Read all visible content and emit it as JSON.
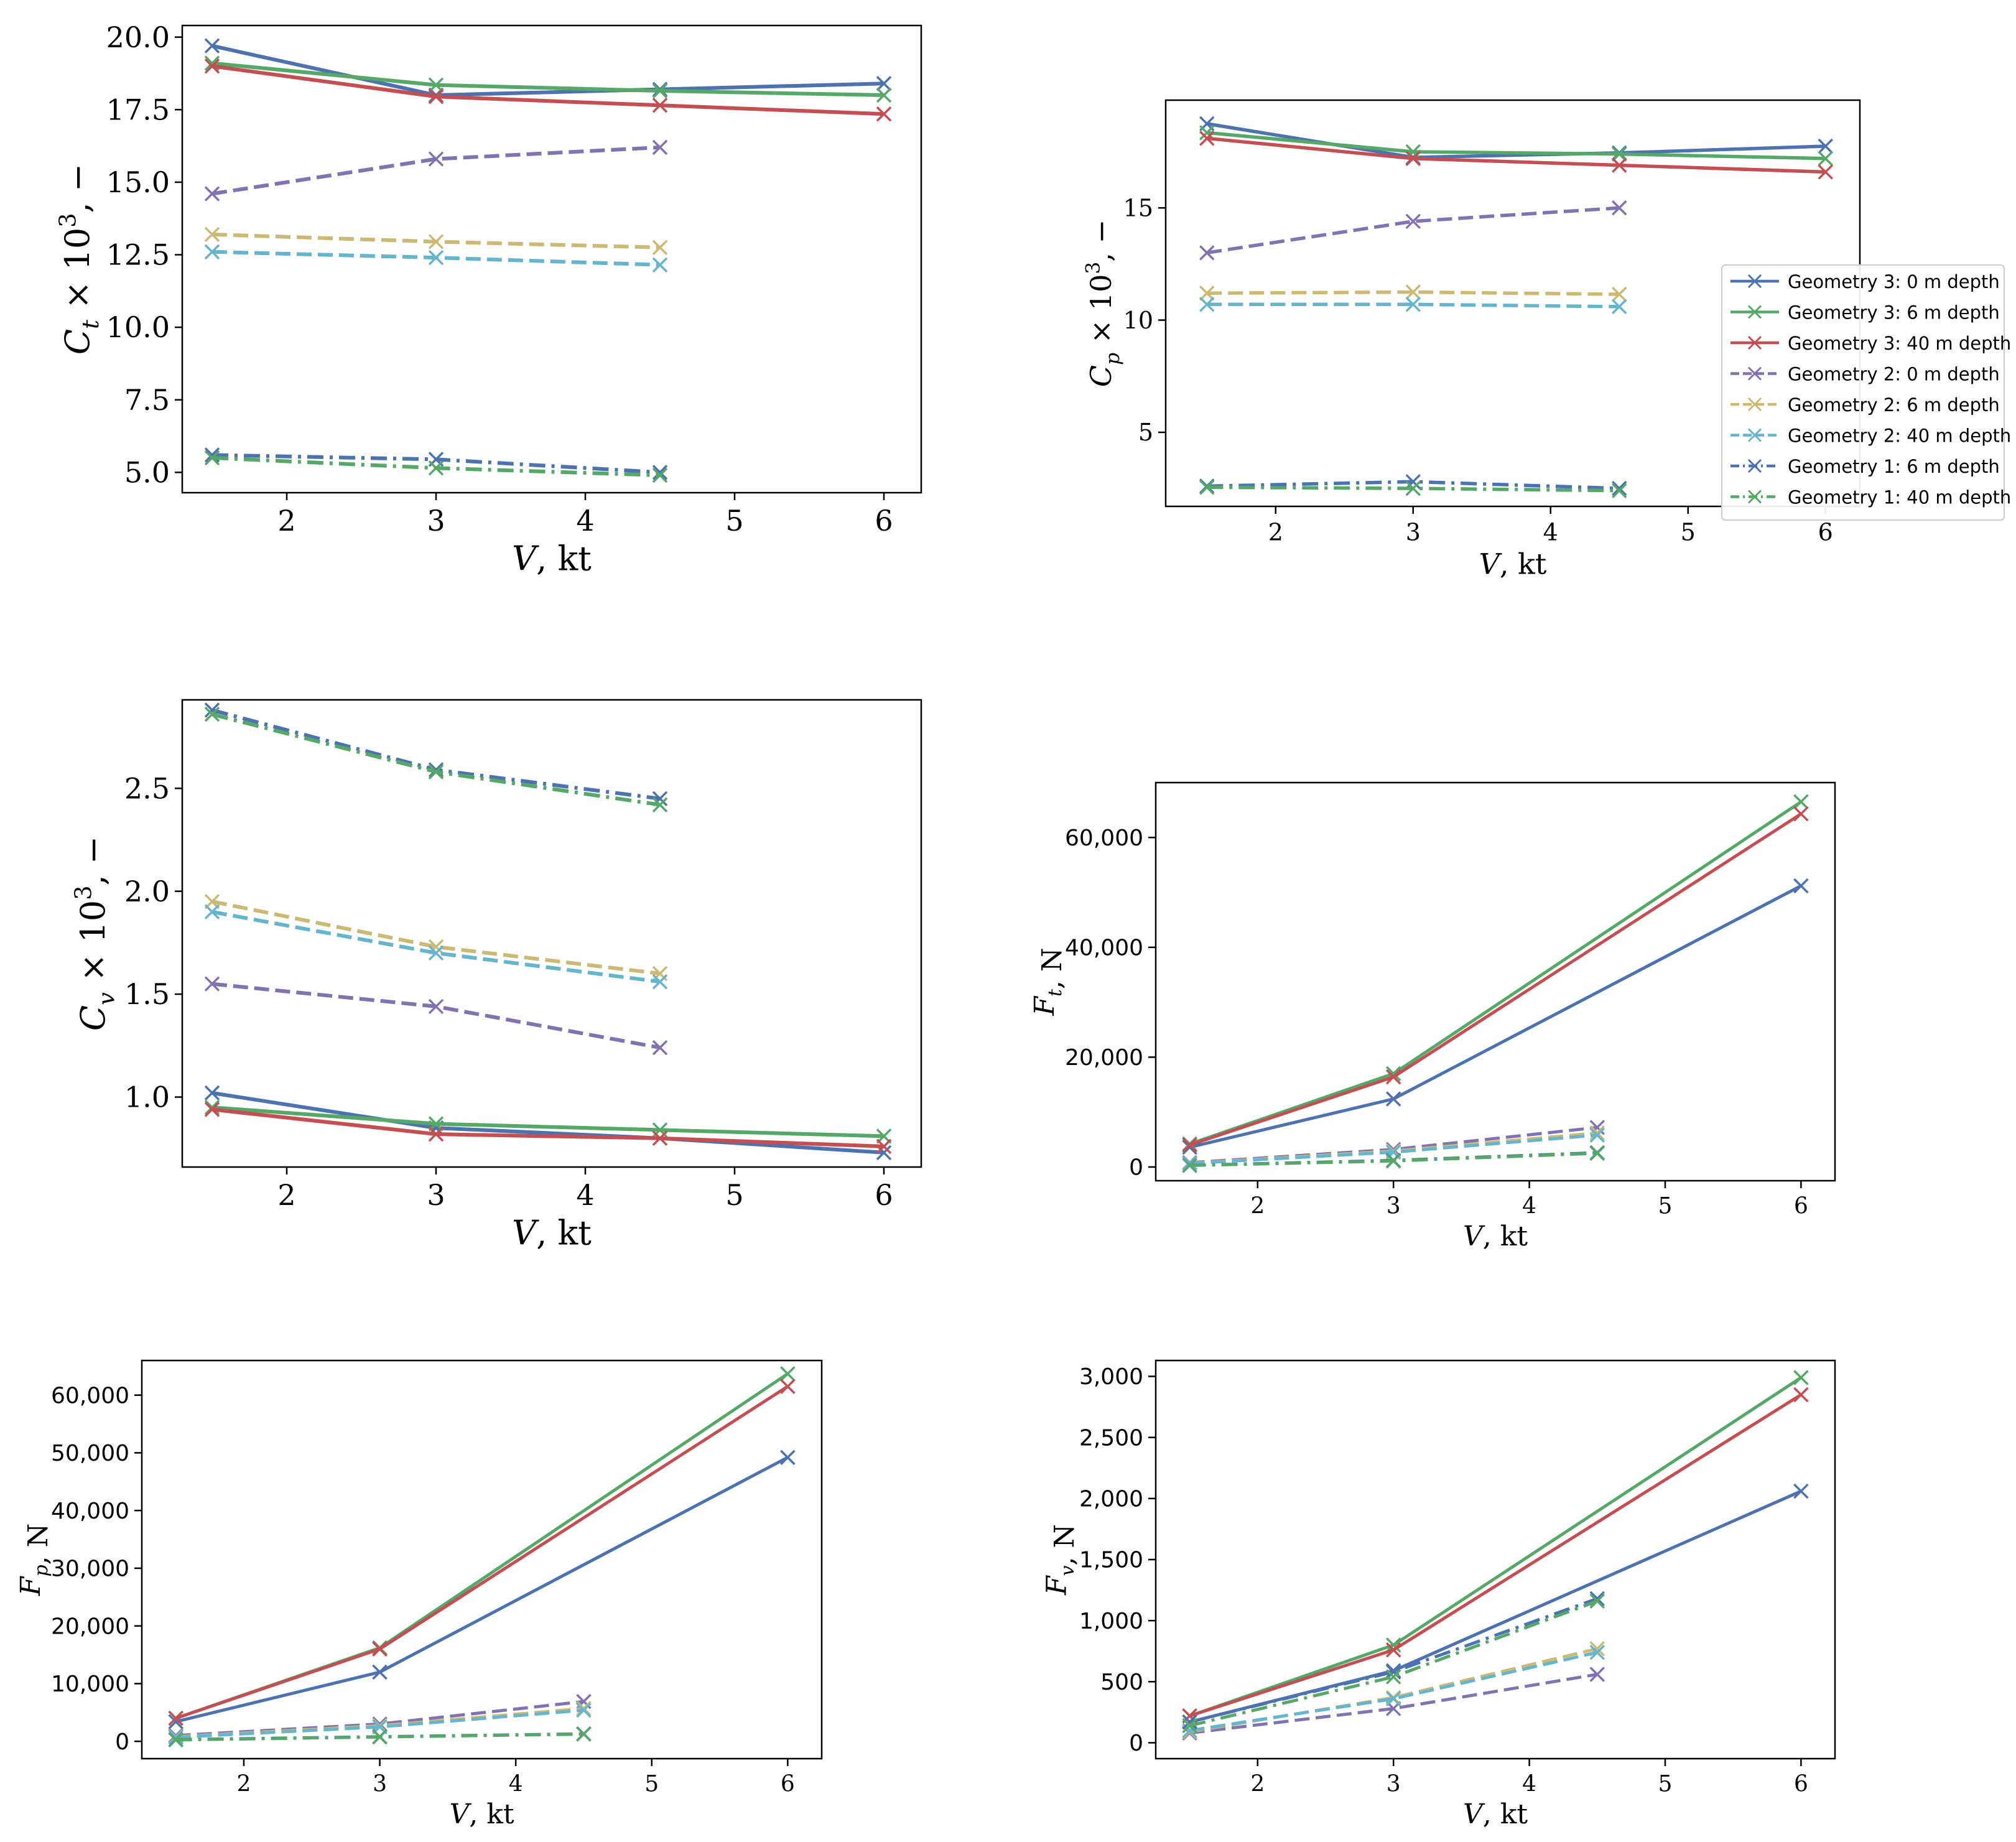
{
  "series_styles": [
    {
      "name": "Geometry 3: 0 m depth",
      "color": "#4c72b0",
      "dash": "solid"
    },
    {
      "name": "Geometry 3: 6 m depth",
      "color": "#55a868",
      "dash": "solid"
    },
    {
      "name": "Geometry 3: 40 m depth",
      "color": "#c44e52",
      "dash": "solid"
    },
    {
      "name": "Geometry 2: 0 m depth",
      "color": "#8172b2",
      "dash": "dashed"
    },
    {
      "name": "Geometry 2: 6 m depth",
      "color": "#ccb974",
      "dash": "dashed"
    },
    {
      "name": "Geometry 2: 40 m depth",
      "color": "#64b5cd",
      "dash": "dashed"
    },
    {
      "name": "Geometry 1: 6 m depth",
      "color": "#4c72b0",
      "dash": "dashdot"
    },
    {
      "name": "Geometry 1: 40 m depth",
      "color": "#55a868",
      "dash": "dashdot"
    }
  ],
  "chart_data": [
    {
      "id": "ct",
      "type": "line",
      "ylabel_html": "C<tspan font-style='italic' baseline-shift='sub' font-size='70%'>t</tspan>",
      "ylabel_tex": "C_t × 10^3, −",
      "ylabel": {
        "base": "C",
        "sub": "t",
        "suffix": " × 10",
        "sup": "3",
        "tail": ", −"
      },
      "xlabel": {
        "base": "V",
        "tail": ", kt"
      },
      "xlim": [
        1.3,
        6.25
      ],
      "ylim": [
        4.3,
        20.4
      ],
      "xticks": [
        2,
        3,
        4,
        5,
        6
      ],
      "yticks": [
        5.0,
        7.5,
        10.0,
        12.5,
        15.0,
        17.5,
        20.0
      ],
      "ytick_labels": [
        "5.0",
        "7.5",
        "10.0",
        "12.5",
        "15.0",
        "17.5",
        "20.0"
      ],
      "legend": false,
      "series": [
        {
          "style": 0,
          "x": [
            1.5,
            3,
            4.5,
            6
          ],
          "y": [
            19.7,
            18.0,
            18.2,
            18.4
          ]
        },
        {
          "style": 1,
          "x": [
            1.5,
            3,
            4.5,
            6
          ],
          "y": [
            19.1,
            18.35,
            18.15,
            18.0
          ]
        },
        {
          "style": 2,
          "x": [
            1.5,
            3,
            4.5,
            6
          ],
          "y": [
            19.0,
            17.95,
            17.65,
            17.35
          ]
        },
        {
          "style": 3,
          "x": [
            1.5,
            3,
            4.5
          ],
          "y": [
            14.6,
            15.8,
            16.2
          ]
        },
        {
          "style": 4,
          "x": [
            1.5,
            3,
            4.5
          ],
          "y": [
            13.2,
            12.95,
            12.75
          ]
        },
        {
          "style": 5,
          "x": [
            1.5,
            3,
            4.5
          ],
          "y": [
            12.6,
            12.4,
            12.15
          ]
        },
        {
          "style": 6,
          "x": [
            1.5,
            3,
            4.5
          ],
          "y": [
            5.6,
            5.45,
            5.0
          ]
        },
        {
          "style": 7,
          "x": [
            1.5,
            3,
            4.5
          ],
          "y": [
            5.5,
            5.15,
            4.9
          ]
        }
      ]
    },
    {
      "id": "cp",
      "type": "line",
      "ylabel": {
        "base": "C",
        "sub": "p",
        "suffix": " × 10",
        "sup": "3",
        "tail": ", −"
      },
      "xlabel": {
        "base": "V",
        "tail": ", kt"
      },
      "xlim": [
        1.2,
        6.25
      ],
      "ylim": [
        1.7,
        19.8
      ],
      "xticks": [
        2,
        3,
        4,
        5,
        6
      ],
      "yticks": [
        5,
        10,
        15
      ],
      "ytick_labels": [
        "5",
        "10",
        "15"
      ],
      "legend": true,
      "legend_loc": "right",
      "series": [
        {
          "style": 0,
          "x": [
            1.5,
            3,
            4.5,
            6
          ],
          "y": [
            18.75,
            17.25,
            17.45,
            17.75
          ]
        },
        {
          "style": 1,
          "x": [
            1.5,
            3,
            4.5,
            6
          ],
          "y": [
            18.35,
            17.5,
            17.4,
            17.2
          ]
        },
        {
          "style": 2,
          "x": [
            1.5,
            3,
            4.5,
            6
          ],
          "y": [
            18.1,
            17.2,
            16.9,
            16.6
          ]
        },
        {
          "style": 3,
          "x": [
            1.5,
            3,
            4.5
          ],
          "y": [
            13.0,
            14.4,
            15.0
          ]
        },
        {
          "style": 4,
          "x": [
            1.5,
            3,
            4.5
          ],
          "y": [
            11.2,
            11.25,
            11.15
          ]
        },
        {
          "style": 5,
          "x": [
            1.5,
            3,
            4.5
          ],
          "y": [
            10.7,
            10.7,
            10.6
          ]
        },
        {
          "style": 6,
          "x": [
            1.5,
            3,
            4.5
          ],
          "y": [
            2.6,
            2.8,
            2.5
          ]
        },
        {
          "style": 7,
          "x": [
            1.5,
            3,
            4.5
          ],
          "y": [
            2.55,
            2.5,
            2.4
          ]
        }
      ]
    },
    {
      "id": "cv",
      "type": "line",
      "ylabel": {
        "base": "C",
        "sub": "v",
        "suffix": " × 10",
        "sup": "3",
        "tail": ", −"
      },
      "xlabel": {
        "base": "V",
        "tail": ", kt"
      },
      "xlim": [
        1.3,
        6.25
      ],
      "ylim": [
        0.66,
        2.93
      ],
      "xticks": [
        2,
        3,
        4,
        5,
        6
      ],
      "yticks": [
        1.0,
        1.5,
        2.0,
        2.5
      ],
      "ytick_labels": [
        "1.0",
        "1.5",
        "2.0",
        "2.5"
      ],
      "legend": false,
      "series": [
        {
          "style": 0,
          "x": [
            1.5,
            3,
            4.5,
            6
          ],
          "y": [
            1.02,
            0.85,
            0.8,
            0.73
          ]
        },
        {
          "style": 1,
          "x": [
            1.5,
            3,
            4.5,
            6
          ],
          "y": [
            0.95,
            0.87,
            0.84,
            0.81
          ]
        },
        {
          "style": 2,
          "x": [
            1.5,
            3,
            4.5,
            6
          ],
          "y": [
            0.94,
            0.82,
            0.8,
            0.76
          ]
        },
        {
          "style": 3,
          "x": [
            1.5,
            3,
            4.5
          ],
          "y": [
            1.55,
            1.44,
            1.24
          ]
        },
        {
          "style": 4,
          "x": [
            1.5,
            3,
            4.5
          ],
          "y": [
            1.95,
            1.73,
            1.6
          ]
        },
        {
          "style": 5,
          "x": [
            1.5,
            3,
            4.5
          ],
          "y": [
            1.9,
            1.7,
            1.56
          ]
        },
        {
          "style": 6,
          "x": [
            1.5,
            3,
            4.5
          ],
          "y": [
            2.88,
            2.59,
            2.45
          ]
        },
        {
          "style": 7,
          "x": [
            1.5,
            3,
            4.5
          ],
          "y": [
            2.86,
            2.58,
            2.42
          ]
        }
      ]
    },
    {
      "id": "ft",
      "type": "line",
      "ylabel": {
        "base": "F",
        "sub": "t",
        "suffix": "",
        "sup": "",
        "tail": ", N"
      },
      "xlabel": {
        "base": "V",
        "tail": ", kt"
      },
      "xlim": [
        1.25,
        6.25
      ],
      "ylim": [
        -2500,
        70000
      ],
      "xticks": [
        2,
        3,
        4,
        5,
        6
      ],
      "yticks": [
        0,
        20000,
        40000,
        60000
      ],
      "ytick_labels": [
        "0",
        "20,000",
        "40,000",
        "60,000"
      ],
      "legend": false,
      "series": [
        {
          "style": 0,
          "x": [
            1.5,
            3,
            6
          ],
          "y": [
            3600,
            12400,
            51200
          ]
        },
        {
          "style": 1,
          "x": [
            1.5,
            3,
            6
          ],
          "y": [
            4200,
            17000,
            66500
          ]
        },
        {
          "style": 2,
          "x": [
            1.5,
            3,
            6
          ],
          "y": [
            4000,
            16400,
            64300
          ]
        },
        {
          "style": 3,
          "x": [
            1.5,
            3,
            4.5
          ],
          "y": [
            800,
            3200,
            7200
          ]
        },
        {
          "style": 4,
          "x": [
            1.5,
            3,
            4.5
          ],
          "y": [
            700,
            2900,
            6200
          ]
        },
        {
          "style": 5,
          "x": [
            1.5,
            3,
            4.5
          ],
          "y": [
            650,
            2700,
            5800
          ]
        },
        {
          "style": 6,
          "x": [
            1.5,
            3,
            4.5
          ],
          "y": [
            300,
            1200,
            2600
          ]
        },
        {
          "style": 7,
          "x": [
            1.5,
            3,
            4.5
          ],
          "y": [
            280,
            1100,
            2500
          ]
        }
      ]
    },
    {
      "id": "fp",
      "type": "line",
      "ylabel": {
        "base": "F",
        "sub": "p",
        "suffix": "",
        "sup": "",
        "tail": ", N"
      },
      "xlabel": {
        "base": "V",
        "tail": ", kt"
      },
      "xlim": [
        1.25,
        6.25
      ],
      "ylim": [
        -3000,
        66000
      ],
      "xticks": [
        2,
        3,
        4,
        5,
        6
      ],
      "yticks": [
        0,
        10000,
        20000,
        30000,
        40000,
        50000,
        60000
      ],
      "ytick_labels": [
        "0",
        "10,000",
        "20,000",
        "30,000",
        "40,000",
        "50,000",
        "60,000"
      ],
      "legend": false,
      "series": [
        {
          "style": 0,
          "x": [
            1.5,
            3,
            6
          ],
          "y": [
            3400,
            12000,
            49200
          ]
        },
        {
          "style": 1,
          "x": [
            1.5,
            3,
            6
          ],
          "y": [
            4000,
            16200,
            63700
          ]
        },
        {
          "style": 2,
          "x": [
            1.5,
            3,
            6
          ],
          "y": [
            4000,
            16000,
            61500
          ]
        },
        {
          "style": 3,
          "x": [
            1.5,
            3,
            4.5
          ],
          "y": [
            1000,
            3000,
            6900
          ]
        },
        {
          "style": 4,
          "x": [
            1.5,
            3,
            4.5
          ],
          "y": [
            800,
            2700,
            5700
          ]
        },
        {
          "style": 5,
          "x": [
            1.5,
            3,
            4.5
          ],
          "y": [
            700,
            2500,
            5400
          ]
        },
        {
          "style": 6,
          "x": [
            1.5,
            3,
            4.5
          ],
          "y": [
            300,
            800,
            1300
          ]
        },
        {
          "style": 7,
          "x": [
            1.5,
            3,
            4.5
          ],
          "y": [
            250,
            750,
            1250
          ]
        }
      ]
    },
    {
      "id": "fv",
      "type": "line",
      "ylabel": {
        "base": "F",
        "sub": "v",
        "suffix": "",
        "sup": "",
        "tail": ", N"
      },
      "xlabel": {
        "base": "V",
        "tail": ", kt"
      },
      "xlim": [
        1.25,
        6.25
      ],
      "ylim": [
        -130,
        3130
      ],
      "xticks": [
        2,
        3,
        4,
        5,
        6
      ],
      "yticks": [
        0,
        500,
        1000,
        1500,
        2000,
        2500,
        3000
      ],
      "ytick_labels": [
        "0",
        "500",
        "1,000",
        "1,500",
        "2,000",
        "2,500",
        "3,000"
      ],
      "legend": false,
      "series": [
        {
          "style": 0,
          "x": [
            1.5,
            3,
            6
          ],
          "y": [
            170,
            590,
            2060
          ]
        },
        {
          "style": 1,
          "x": [
            1.5,
            3,
            6
          ],
          "y": [
            220,
            800,
            2990
          ]
        },
        {
          "style": 2,
          "x": [
            1.5,
            3,
            6
          ],
          "y": [
            220,
            760,
            2850
          ]
        },
        {
          "style": 3,
          "x": [
            1.5,
            3,
            4.5
          ],
          "y": [
            80,
            280,
            560
          ]
        },
        {
          "style": 4,
          "x": [
            1.5,
            3,
            4.5
          ],
          "y": [
            90,
            370,
            770
          ]
        },
        {
          "style": 5,
          "x": [
            1.5,
            3,
            4.5
          ],
          "y": [
            100,
            360,
            740
          ]
        },
        {
          "style": 6,
          "x": [
            1.5,
            3,
            4.5
          ],
          "y": [
            170,
            580,
            1180
          ]
        },
        {
          "style": 7,
          "x": [
            1.5,
            3,
            4.5
          ],
          "y": [
            140,
            540,
            1160
          ]
        }
      ]
    }
  ]
}
